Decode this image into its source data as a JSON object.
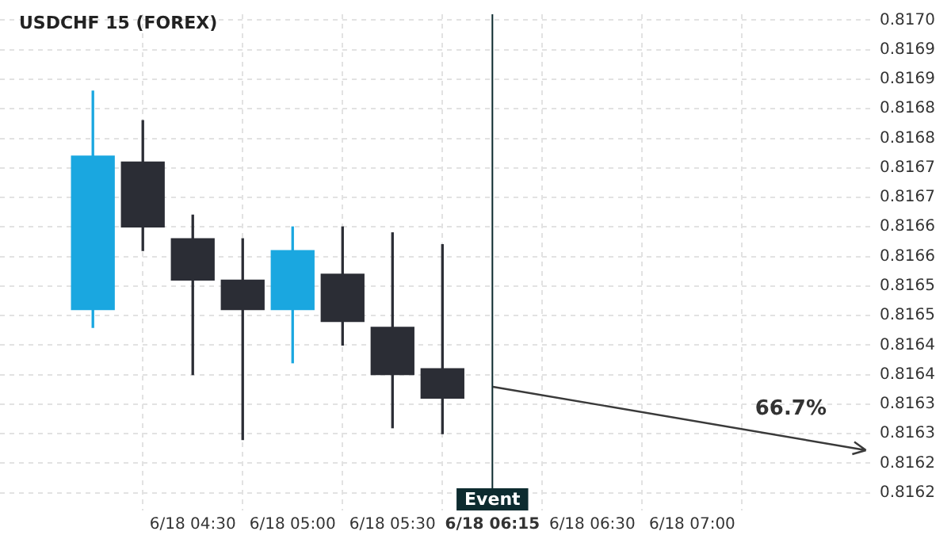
{
  "chart_data": {
    "type": "candlestick",
    "title": "USDCHF 15 (FOREX)",
    "categories": [
      null,
      null,
      "6/18 04:30",
      null,
      "6/18 05:00",
      null,
      "6/18 05:30",
      null,
      "6/18 06:15",
      null,
      "6/18 06:30",
      null,
      "6/18 07:00",
      null,
      null
    ],
    "ohlc": [
      [
        0.81651,
        0.81688,
        0.81648,
        0.81677
      ],
      [
        0.81676,
        0.81683,
        0.81661,
        0.81665
      ],
      [
        0.81663,
        0.81667,
        0.8164,
        0.81656
      ],
      [
        0.81656,
        0.81663,
        0.81629,
        0.81651
      ],
      [
        0.81651,
        0.81665,
        0.81642,
        0.81661
      ],
      [
        0.81657,
        0.81665,
        0.81645,
        0.81649
      ],
      [
        0.81648,
        0.81664,
        0.81631,
        0.8164
      ],
      [
        0.81641,
        0.81662,
        0.8163,
        0.81636
      ],
      null,
      null,
      null,
      null,
      null,
      null,
      null
    ],
    "colors": [
      "#1aa7e0",
      "#2b2d35",
      "#2b2d35",
      "#2b2d35",
      "#1aa7e0",
      "#2b2d35",
      "#2b2d35",
      "#2b2d35",
      null,
      null,
      null,
      null,
      null,
      null,
      null
    ],
    "annotations": [
      "66.7%"
    ],
    "ref_lines": [
      {
        "axis": "x",
        "value": "6/18 06:15",
        "label": "Event",
        "color": "#0d2b2f"
      }
    ],
    "ylim": [
      0.81617,
      0.81701
    ],
    "yticks": [
      {
        "value": 0.817,
        "label": "0.8170"
      },
      {
        "value": 0.81695,
        "label": "0.8169"
      },
      {
        "value": 0.8169,
        "label": "0.8169"
      },
      {
        "value": 0.81685,
        "label": "0.8168"
      },
      {
        "value": 0.8168,
        "label": "0.8168"
      },
      {
        "value": 0.81675,
        "label": "0.8167"
      },
      {
        "value": 0.8167,
        "label": "0.8167"
      },
      {
        "value": 0.81665,
        "label": "0.8166"
      },
      {
        "value": 0.8166,
        "label": "0.8166"
      },
      {
        "value": 0.81655,
        "label": "0.8165"
      },
      {
        "value": 0.8165,
        "label": "0.8165"
      },
      {
        "value": 0.81645,
        "label": "0.8164"
      },
      {
        "value": 0.8164,
        "label": "0.8164"
      },
      {
        "value": 0.81635,
        "label": "0.8163"
      },
      {
        "value": 0.8163,
        "label": "0.8163"
      },
      {
        "value": 0.81625,
        "label": "0.8162"
      },
      {
        "value": 0.8162,
        "label": "0.8162"
      }
    ],
    "grid": true
  }
}
